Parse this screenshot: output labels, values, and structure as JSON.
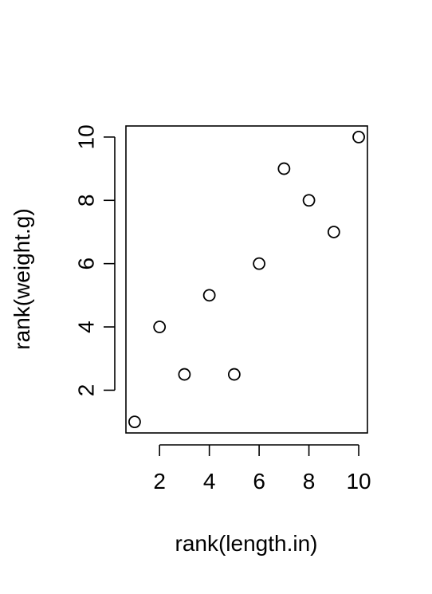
{
  "chart_data": {
    "type": "scatter",
    "title": "",
    "xlabel": "rank(length.in)",
    "ylabel": "rank(weight.g)",
    "xlim": [
      0.65,
      10.35
    ],
    "ylim": [
      0.65,
      10.35
    ],
    "x_ticks": [
      2,
      4,
      6,
      8,
      10
    ],
    "y_ticks": [
      2,
      4,
      6,
      8,
      10
    ],
    "x_tick_labels": [
      "2",
      "4",
      "6",
      "8",
      "10"
    ],
    "y_tick_labels": [
      "2",
      "4",
      "6",
      "8",
      "10"
    ],
    "grid": false,
    "legend": "none",
    "marker": "open-circle",
    "points": [
      {
        "x": 1,
        "y": 1
      },
      {
        "x": 2,
        "y": 4
      },
      {
        "x": 3,
        "y": 2.5
      },
      {
        "x": 4,
        "y": 5
      },
      {
        "x": 5,
        "y": 2.5
      },
      {
        "x": 6,
        "y": 6
      },
      {
        "x": 7,
        "y": 9
      },
      {
        "x": 8,
        "y": 8
      },
      {
        "x": 9,
        "y": 7
      },
      {
        "x": 10,
        "y": 10
      }
    ],
    "colors": {
      "marker_stroke": "#000000",
      "axis": "#000000",
      "background": "#ffffff"
    }
  }
}
